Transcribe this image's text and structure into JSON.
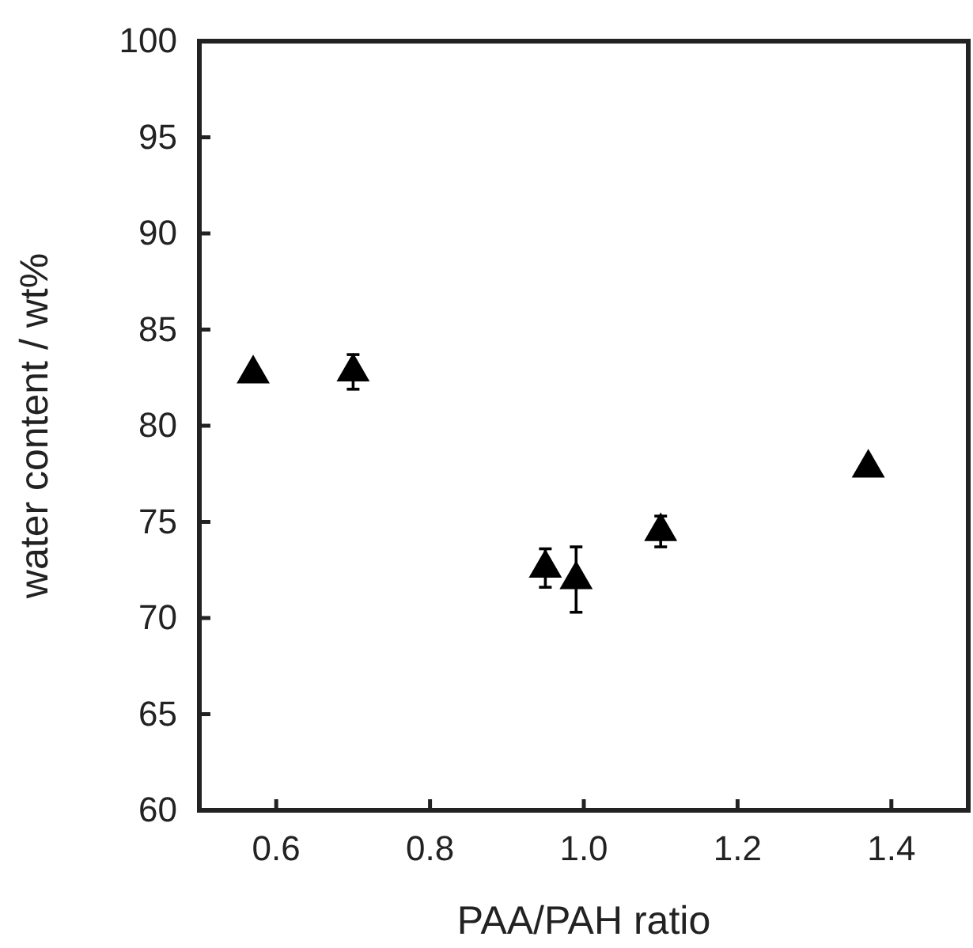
{
  "chart_data": {
    "type": "scatter",
    "xlabel": "PAA/PAH ratio",
    "ylabel": "water content / wt%",
    "x": [
      0.57,
      0.7,
      0.95,
      0.99,
      1.1,
      1.37
    ],
    "series": [
      {
        "color": "#000000",
        "values": [
          82.7,
          82.8,
          72.6,
          72.0,
          74.5,
          77.8
        ],
        "errors": [
          null,
          0.9,
          1.0,
          1.7,
          0.8,
          null
        ]
      }
    ],
    "marker": "triangle",
    "xlim": [
      0.5,
      1.5
    ],
    "xticks": [
      {
        "value": 0.6,
        "label": "0.6"
      },
      {
        "value": 0.8,
        "label": "0.8"
      },
      {
        "value": 1.0,
        "label": "1.0"
      },
      {
        "value": 1.2,
        "label": "1.2"
      },
      {
        "value": 1.4,
        "label": "1.4"
      }
    ],
    "ylim": [
      60,
      100
    ],
    "yticks": [
      60,
      65,
      70,
      75,
      80,
      85,
      90,
      95,
      100
    ],
    "grid": false
  }
}
